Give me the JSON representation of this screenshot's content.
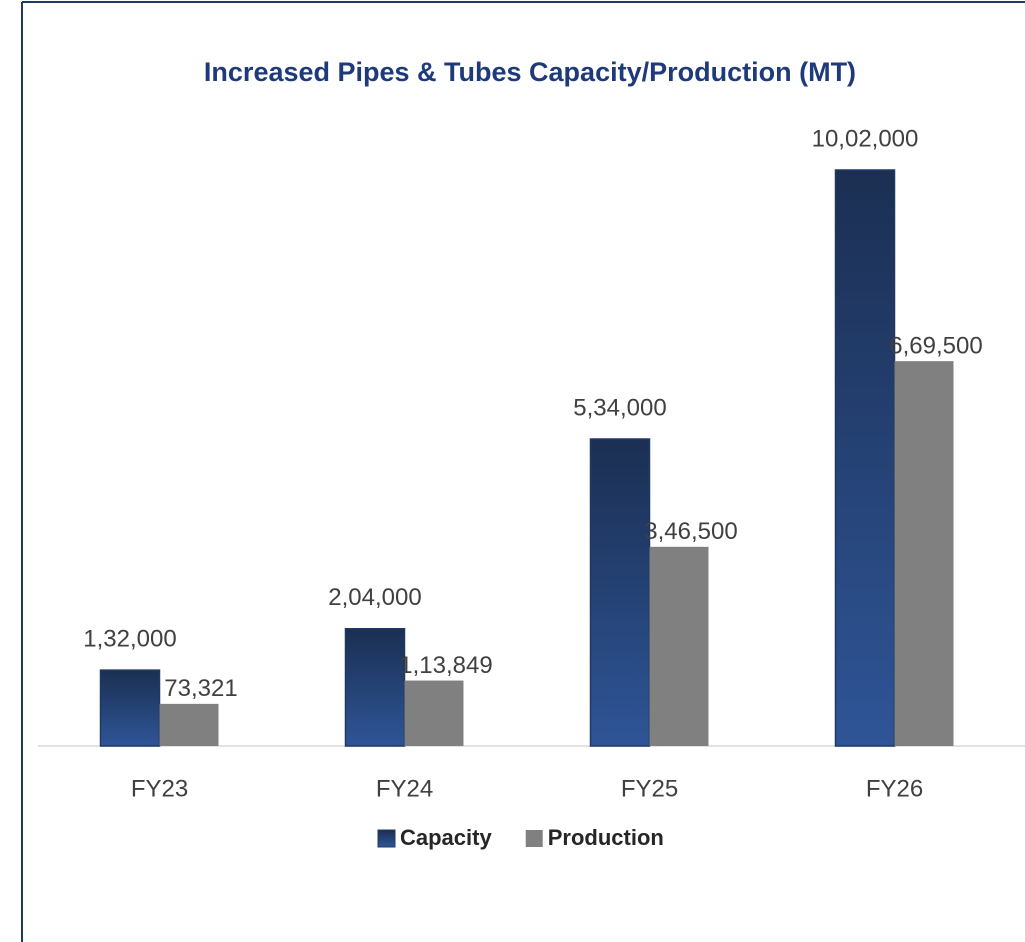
{
  "chart_data": {
    "type": "bar",
    "title": "Increased Pipes & Tubes Capacity/Production (MT)",
    "categories": [
      "FY23",
      "FY24",
      "FY25",
      "FY26"
    ],
    "series": [
      {
        "name": "Capacity",
        "color": "#2f5597",
        "values": [
          132000,
          204000,
          534000,
          1002000
        ],
        "value_labels": [
          "1,32,000",
          "2,04,000",
          "5,34,000",
          "10,02,000"
        ]
      },
      {
        "name": "Production",
        "color": "#808080",
        "values": [
          73321,
          113849,
          346500,
          669500
        ],
        "value_labels": [
          "73,321",
          "1,13,849",
          "3,46,500",
          "6,69,500"
        ]
      }
    ],
    "legend": "bottom"
  }
}
